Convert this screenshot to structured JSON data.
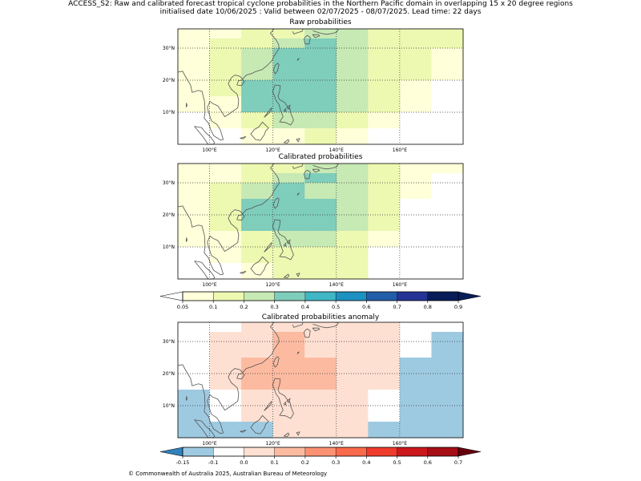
{
  "header": {
    "line1": "ACCESS_S2: Raw and calibrated forecast tropical cyclone probabilities in the Northern Pacific domain in overlapping 15 x 20 degree regions",
    "line2": "initialised date 10/06/2025 :  Valid between 02/07/2025 - 08/07/2025. Lead time: 22 days"
  },
  "footer": "© Commonwealth of Australia 2025, Australian Bureau of Meteorology",
  "chart_data": [
    {
      "type": "heatmap",
      "title": "Raw probabilities",
      "xticks": [
        "100°E",
        "120°E",
        "140°E",
        "160°E"
      ],
      "yticks": [
        "10°N",
        "20°N",
        "30°N"
      ],
      "x_edges": [
        90,
        100,
        110,
        120,
        130,
        140,
        150,
        160,
        170,
        180
      ],
      "y_edges_top_down": [
        36,
        33,
        30,
        25,
        20,
        15,
        10,
        5,
        0
      ],
      "rows": [
        [
          0.05,
          0.05,
          0.1,
          0.1,
          0.2,
          0.2,
          0.1,
          0.1,
          0.1
        ],
        [
          0.05,
          0.1,
          0.1,
          0.2,
          0.3,
          0.2,
          0.1,
          0.1,
          0.1
        ],
        [
          0.05,
          0.1,
          0.2,
          0.3,
          0.3,
          0.2,
          0.1,
          0.1,
          0.05
        ],
        [
          0.05,
          0.1,
          0.2,
          0.3,
          0.3,
          0.2,
          0.1,
          0.1,
          0.05
        ],
        [
          0.05,
          0.1,
          0.3,
          0.3,
          0.3,
          0.2,
          0.1,
          0.05,
          0
        ],
        [
          0.05,
          0.05,
          0.3,
          0.3,
          0.3,
          0.2,
          0.1,
          0.05,
          0
        ],
        [
          0,
          0.05,
          0.1,
          0.2,
          0.2,
          0.1,
          0.05,
          0,
          0
        ],
        [
          0,
          0,
          0.05,
          0.05,
          0.1,
          0.05,
          0,
          0,
          0
        ]
      ]
    },
    {
      "type": "heatmap",
      "title": "Calibrated probabilities",
      "xticks": [
        "100°E",
        "120°E",
        "140°E",
        "160°E"
      ],
      "yticks": [
        "10°N",
        "20°N",
        "30°N"
      ],
      "x_edges": [
        90,
        100,
        110,
        120,
        130,
        140,
        150,
        160,
        170,
        180
      ],
      "y_edges_top_down": [
        36,
        33,
        30,
        25,
        20,
        15,
        10,
        5,
        0
      ],
      "rows": [
        [
          0.05,
          0.05,
          0.1,
          0.1,
          0.2,
          0.2,
          0.1,
          0.05,
          0.05
        ],
        [
          0.05,
          0.05,
          0.1,
          0.2,
          0.3,
          0.2,
          0.1,
          0.05,
          0
        ],
        [
          0.05,
          0.1,
          0.2,
          0.3,
          0.2,
          0.2,
          0.1,
          0.05,
          0
        ],
        [
          0.05,
          0.1,
          0.3,
          0.3,
          0.3,
          0.2,
          0.1,
          0,
          0
        ],
        [
          0.05,
          0.1,
          0.3,
          0.3,
          0.3,
          0.2,
          0.1,
          0,
          0
        ],
        [
          0.05,
          0.05,
          0.1,
          0.2,
          0.2,
          0.1,
          0.05,
          0,
          0
        ],
        [
          0,
          0.05,
          0.1,
          0.1,
          0.1,
          0.1,
          0,
          0,
          0
        ],
        [
          0,
          0,
          0.05,
          0.1,
          0.1,
          0.1,
          0,
          0,
          0
        ]
      ]
    },
    {
      "type": "heatmap",
      "title": "Calibrated probabilities anomaly",
      "xticks": [
        "100°E",
        "120°E",
        "140°E",
        "160°E"
      ],
      "yticks": [
        "10°N",
        "20°N",
        "30°N"
      ],
      "x_edges": [
        90,
        100,
        110,
        120,
        130,
        140,
        150,
        160,
        170,
        180
      ],
      "y_edges_top_down": [
        36,
        33,
        30,
        25,
        20,
        15,
        10,
        5,
        0
      ],
      "rows": [
        [
          -0.1,
          -0.1,
          0,
          0,
          0,
          0,
          0,
          -0.1,
          -0.1
        ],
        [
          -0.1,
          0,
          0.05,
          0.1,
          0.05,
          0.05,
          0,
          -0.1,
          -0.15
        ],
        [
          -0.1,
          0,
          0.05,
          0.1,
          0.05,
          0.05,
          0,
          -0.1,
          -0.15
        ],
        [
          -0.1,
          0,
          0.1,
          0.1,
          0.1,
          0.05,
          0,
          -0.15,
          -0.15
        ],
        [
          -0.1,
          0,
          0.1,
          0.1,
          0.1,
          0.05,
          0,
          -0.15,
          -0.15
        ],
        [
          -0.15,
          -0.1,
          0,
          0.05,
          0.05,
          0,
          -0.1,
          -0.15,
          -0.15
        ],
        [
          -0.15,
          -0.1,
          0,
          0.05,
          0.05,
          0,
          -0.1,
          -0.15,
          -0.15
        ],
        [
          -0.15,
          -0.15,
          -0.15,
          0,
          0,
          0,
          -0.15,
          -0.15,
          -0.15
        ]
      ]
    }
  ],
  "colorbars": {
    "probability": {
      "ticks": [
        "0.05",
        "0.1",
        "0.2",
        "0.3",
        "0.4",
        "0.5",
        "0.6",
        "0.7",
        "0.8",
        "0.9"
      ],
      "values": [
        0.05,
        0.1,
        0.2,
        0.3,
        0.4,
        0.5,
        0.6,
        0.7,
        0.8,
        0.9
      ],
      "colors": [
        "#ffffd9",
        "#edf8b1",
        "#c7e9b4",
        "#7fcdbb",
        "#41b6c4",
        "#1d91c0",
        "#225ea8",
        "#253494",
        "#081d58"
      ],
      "under_color": "#ffffff",
      "over_color": "#081d58"
    },
    "anomaly": {
      "ticks": [
        "-0.15",
        "-0.1",
        "0.0",
        "0.1",
        "0.2",
        "0.3",
        "0.4",
        "0.5",
        "0.6",
        "0.7"
      ],
      "values": [
        -0.15,
        -0.1,
        0.0,
        0.1,
        0.2,
        0.3,
        0.4,
        0.5,
        0.6,
        0.7
      ],
      "colors": [
        "#9ecae1",
        "#ffffff",
        "#fee0d2",
        "#fcbba1",
        "#fc9272",
        "#fb6a4a",
        "#ef3b2c",
        "#cb181d",
        "#a50f15"
      ],
      "under_color": "#3182bd",
      "over_color": "#67000d"
    }
  }
}
